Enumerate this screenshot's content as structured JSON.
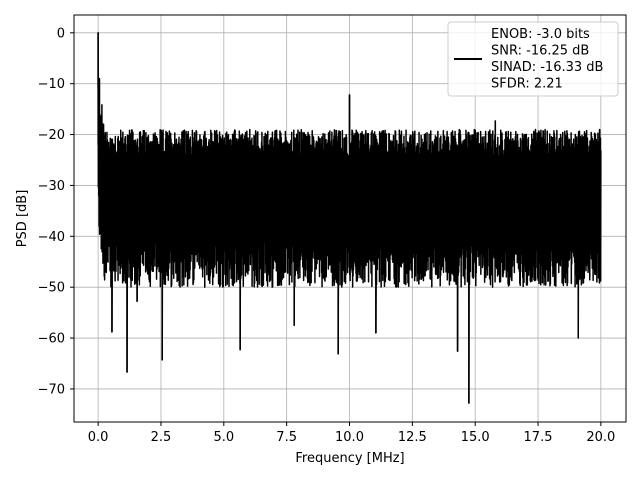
{
  "chart_data": {
    "type": "line",
    "title": "",
    "xlabel": "Frequency [MHz]",
    "ylabel": "PSD [dB]",
    "xlim": [
      -0.96,
      21.0
    ],
    "ylim": [
      -76.5,
      3.5
    ],
    "xticks": [
      0.0,
      2.5,
      5.0,
      7.5,
      10.0,
      12.5,
      15.0,
      17.5,
      20.0
    ],
    "xtick_labels": [
      "0.0",
      "2.5",
      "5.0",
      "7.5",
      "10.0",
      "12.5",
      "15.0",
      "17.5",
      "20.0"
    ],
    "yticks": [
      0,
      -10,
      -20,
      -30,
      -40,
      -50,
      -60,
      -70
    ],
    "ytick_labels": [
      "0",
      "−10",
      "−20",
      "−30",
      "−40",
      "−50",
      "−60",
      "−70"
    ],
    "grid": true,
    "legend_position": "top-right",
    "legend_entries": [
      "ENOB: -3.0 bits",
      "SNR: -16.25 dB",
      "SINAD: -16.33 dB",
      "SFDR: 2.21"
    ],
    "line_color": "#000000",
    "series": [
      {
        "x_start": 0.0,
        "x_end": 20.0,
        "noise_ceiling_db": -22,
        "noise_floor_db": -43,
        "peaks": [
          {
            "x": 0.0,
            "y": 0.0
          },
          {
            "x": 0.05,
            "y": -9.0
          },
          {
            "x": 10.0,
            "y": -12.2
          },
          {
            "x": 15.8,
            "y": -17.3
          },
          {
            "x": 19.95,
            "y": -19.0
          }
        ],
        "dips": [
          {
            "x": 0.55,
            "y": -58.8
          },
          {
            "x": 1.15,
            "y": -66.7
          },
          {
            "x": 1.55,
            "y": -52.8
          },
          {
            "x": 2.55,
            "y": -64.3
          },
          {
            "x": 5.65,
            "y": -62.3
          },
          {
            "x": 7.8,
            "y": -57.5
          },
          {
            "x": 9.55,
            "y": -63.1
          },
          {
            "x": 11.05,
            "y": -59.0
          },
          {
            "x": 14.3,
            "y": -62.6
          },
          {
            "x": 14.75,
            "y": -72.8
          },
          {
            "x": 19.1,
            "y": -60.0
          }
        ]
      }
    ]
  }
}
